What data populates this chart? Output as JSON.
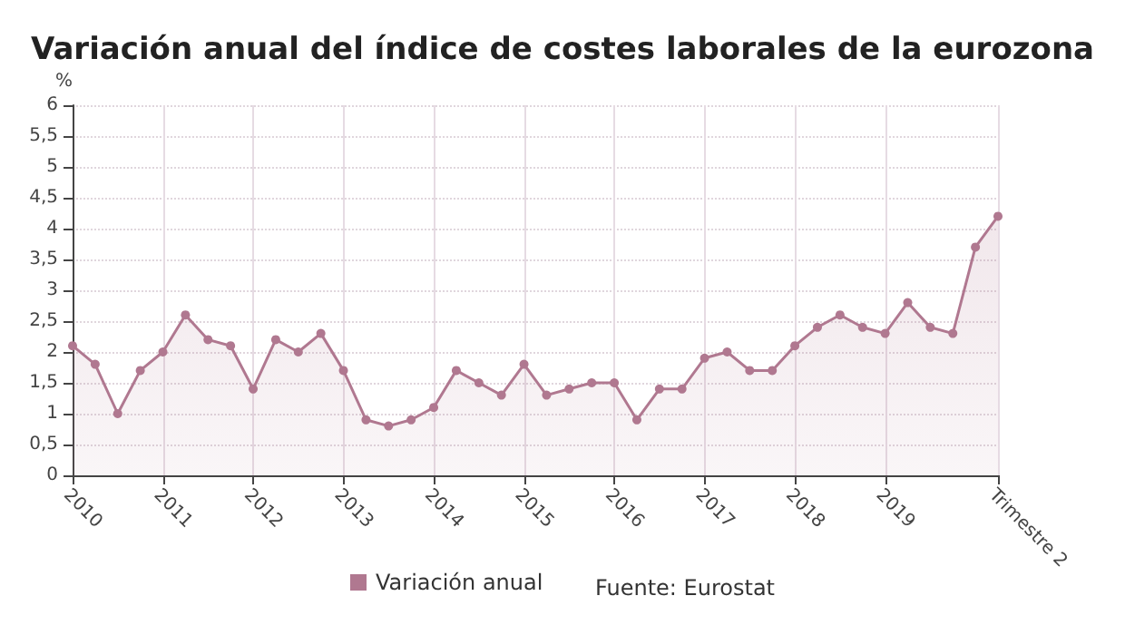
{
  "chart_data": {
    "type": "area",
    "title": "Variación anual del índice de costes laborales de la eurozona",
    "ylabel": "%",
    "categories": [
      "2010",
      null,
      null,
      null,
      "2011",
      null,
      null,
      null,
      "2012",
      null,
      null,
      null,
      "2013",
      null,
      null,
      null,
      "2014",
      null,
      null,
      null,
      "2015",
      null,
      null,
      null,
      "2016",
      null,
      null,
      null,
      "2017",
      null,
      null,
      null,
      "2018",
      null,
      null,
      null,
      "2019",
      null,
      null,
      null,
      null,
      "Trimestre 2"
    ],
    "series": [
      {
        "name": "Variación anual",
        "color": "#b07890",
        "values": [
          2.1,
          1.8,
          1.0,
          1.7,
          2.0,
          2.6,
          2.2,
          2.1,
          1.4,
          2.2,
          2.0,
          2.3,
          1.7,
          0.9,
          0.8,
          0.9,
          1.1,
          1.7,
          1.5,
          1.3,
          1.8,
          1.3,
          1.4,
          1.5,
          1.5,
          0.9,
          1.4,
          1.4,
          1.9,
          2.0,
          1.7,
          1.7,
          2.1,
          2.4,
          2.6,
          2.4,
          2.3,
          2.8,
          2.4,
          2.3,
          3.7,
          4.2
        ]
      }
    ],
    "ylim": [
      0,
      6
    ],
    "yticks": [
      0,
      {
        "value": 0.5,
        "label": "0,5"
      },
      1,
      {
        "value": 1.5,
        "label": "1,5"
      },
      2,
      {
        "value": 2.5,
        "label": "2,5"
      },
      3,
      {
        "value": 3.5,
        "label": "3,5"
      },
      4,
      {
        "value": 4.5,
        "label": "4,5"
      },
      5,
      {
        "value": 5.5,
        "label": "5,5"
      },
      6
    ],
    "grid": true,
    "legend": "bottom",
    "marker": "circle",
    "line_style": "solid",
    "annotations": [
      "Fuente: Eurostat"
    ]
  }
}
